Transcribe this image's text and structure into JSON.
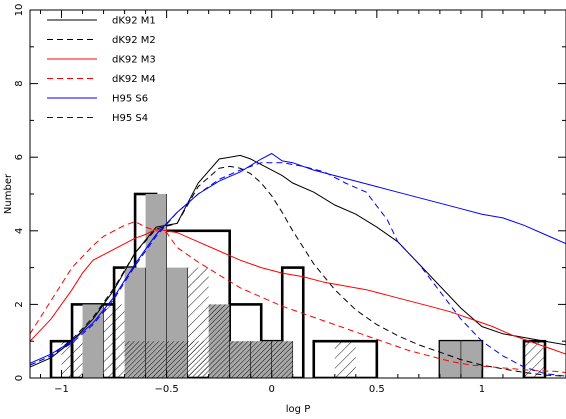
{
  "chart_data": {
    "type": "histogram-with-lines",
    "xlabel": "log P",
    "ylabel": "Number",
    "xlim": [
      -1.15,
      1.4
    ],
    "ylim": [
      0,
      10
    ],
    "x_ticks": [
      -1,
      -0.5,
      0,
      0.5,
      1
    ],
    "x_tick_labels": [
      "−1",
      "−0.5",
      "0",
      "0.5",
      "1"
    ],
    "y_ticks": [
      0,
      2,
      4,
      6,
      8,
      10
    ],
    "y_tick_labels": [
      "0",
      "2",
      "4",
      "6",
      "8",
      "10"
    ],
    "grid": false,
    "legend_position": "top-left",
    "bin_width": 0.1,
    "histograms": [
      {
        "style": "outline-thick-black",
        "bins": [
          {
            "x0": -1.05,
            "x1": -0.95,
            "value": 1
          },
          {
            "x0": -0.95,
            "x1": -0.75,
            "value": 2
          },
          {
            "x0": -0.75,
            "x1": -0.65,
            "value": 3
          },
          {
            "x0": -0.65,
            "x1": -0.55,
            "value": 5
          },
          {
            "x0": -0.55,
            "x1": -0.2,
            "value": 4
          },
          {
            "x0": -0.2,
            "x1": -0.05,
            "value": 2
          },
          {
            "x0": -0.05,
            "x1": 0.05,
            "value": 1
          },
          {
            "x0": 0.05,
            "x1": 0.15,
            "value": 3
          },
          {
            "x0": 0.2,
            "x1": 0.5,
            "value": 1
          },
          {
            "x0": 0.8,
            "x1": 1.0,
            "value": 1
          },
          {
            "x0": 1.2,
            "x1": 1.3,
            "value": 1
          }
        ]
      },
      {
        "style": "light-hatch",
        "bins": [
          {
            "x0": -1.0,
            "x1": -0.9,
            "value": 1
          },
          {
            "x0": -0.8,
            "x1": -0.7,
            "value": 2
          },
          {
            "x0": -0.4,
            "x1": -0.3,
            "value": 3
          },
          {
            "x0": 0.3,
            "x1": 0.4,
            "value": 1
          },
          {
            "x0": 1.2,
            "x1": 1.3,
            "value": 1
          }
        ]
      },
      {
        "style": "gray-fill",
        "bins": [
          {
            "x0": -0.9,
            "x1": -0.8,
            "value": 2
          },
          {
            "x0": -0.7,
            "x1": -0.6,
            "value": 3
          },
          {
            "x0": -0.6,
            "x1": -0.5,
            "value": 5
          },
          {
            "x0": -0.5,
            "x1": -0.4,
            "value": 3
          },
          {
            "x0": -0.3,
            "x1": -0.2,
            "value": 2
          },
          {
            "x0": -0.2,
            "x1": -0.1,
            "value": 1
          },
          {
            "x0": -0.1,
            "x1": 0.0,
            "value": 1
          },
          {
            "x0": 0.0,
            "x1": 0.1,
            "value": 1
          },
          {
            "x0": 0.8,
            "x1": 0.9,
            "value": 1
          },
          {
            "x0": 0.9,
            "x1": 1.0,
            "value": 1
          }
        ]
      },
      {
        "style": "dark-hatch",
        "bins": [
          {
            "x0": -0.7,
            "x1": -0.3,
            "value": 1
          },
          {
            "x0": -0.3,
            "x1": -0.2,
            "value": 2
          },
          {
            "x0": -0.2,
            "x1": 0.1,
            "value": 1
          }
        ]
      }
    ],
    "series": [
      {
        "name": "dK92  M1",
        "color": "#000000",
        "dash": "solid",
        "x": [
          -1.15,
          -1.05,
          -0.95,
          -0.85,
          -0.75,
          -0.65,
          -0.55,
          -0.45,
          -0.35,
          -0.25,
          -0.2,
          -0.15,
          -0.1,
          -0.05,
          0,
          0.05,
          0.1,
          0.2,
          0.3,
          0.4,
          0.5,
          0.6,
          0.7,
          0.8,
          0.9,
          1.0,
          1.1,
          1.2,
          1.3,
          1.4
        ],
        "y": [
          0.3,
          0.55,
          1.0,
          1.6,
          2.4,
          3.4,
          4.1,
          4.2,
          5.3,
          5.95,
          6.0,
          6.05,
          5.95,
          5.8,
          5.65,
          5.5,
          5.3,
          5.05,
          4.7,
          4.45,
          4.1,
          3.7,
          3.1,
          2.5,
          1.9,
          1.4,
          1.2,
          1.1,
          1.0,
          0.9
        ]
      },
      {
        "name": "dK92  M2",
        "color": "#000000",
        "dash": "dashed",
        "x": [
          -1.15,
          -1.05,
          -0.95,
          -0.85,
          -0.75,
          -0.65,
          -0.55,
          -0.45,
          -0.35,
          -0.25,
          -0.2,
          -0.15,
          -0.1,
          -0.05,
          0,
          0.05,
          0.1,
          0.2,
          0.3,
          0.4,
          0.5,
          0.6,
          0.7,
          0.8,
          0.9,
          1.0,
          1.1,
          1.2,
          1.3,
          1.4
        ],
        "y": [
          0.35,
          0.6,
          1.05,
          1.65,
          2.45,
          3.4,
          4.05,
          4.2,
          5.2,
          5.7,
          5.75,
          5.7,
          5.55,
          5.3,
          4.95,
          4.5,
          4.0,
          3.1,
          2.4,
          1.85,
          1.45,
          1.15,
          0.9,
          0.7,
          0.5,
          0.35,
          0.25,
          0.15,
          0.08,
          0.05
        ]
      },
      {
        "name": "dK92  M3",
        "color": "#ff0000",
        "dash": "solid",
        "x": [
          -1.15,
          -1.05,
          -0.95,
          -0.9,
          -0.85,
          -0.75,
          -0.65,
          -0.6,
          -0.55,
          -0.45,
          -0.35,
          -0.25,
          -0.15,
          -0.05,
          0.05,
          0.15,
          0.25,
          0.35,
          0.45,
          0.55,
          0.65,
          0.75,
          0.85,
          0.95,
          1.05,
          1.15,
          1.25,
          1.35,
          1.4
        ],
        "y": [
          1.0,
          1.6,
          2.4,
          2.85,
          3.2,
          3.5,
          3.8,
          3.9,
          4.05,
          3.95,
          3.7,
          3.45,
          3.2,
          3.0,
          2.85,
          2.75,
          2.6,
          2.5,
          2.4,
          2.25,
          2.1,
          1.95,
          1.8,
          1.6,
          1.4,
          1.15,
          0.95,
          0.75,
          0.65
        ]
      },
      {
        "name": "dK92  M4",
        "color": "#ff0000",
        "dash": "dashed",
        "x": [
          -1.15,
          -1.05,
          -0.95,
          -0.85,
          -0.8,
          -0.75,
          -0.7,
          -0.65,
          -0.6,
          -0.55,
          -0.5,
          -0.45,
          -0.35,
          -0.25,
          -0.15,
          -0.05,
          0.05,
          0.15,
          0.25,
          0.35,
          0.45,
          0.55,
          0.65,
          0.75,
          0.85,
          0.95,
          1.05,
          1.15,
          1.25,
          1.35,
          1.4
        ],
        "y": [
          1.2,
          2.1,
          3.0,
          3.6,
          3.85,
          4.0,
          4.15,
          4.25,
          4.1,
          4.0,
          3.95,
          3.55,
          3.15,
          2.8,
          2.45,
          2.2,
          1.95,
          1.75,
          1.55,
          1.35,
          1.15,
          0.95,
          0.75,
          0.6,
          0.45,
          0.35,
          0.3,
          0.25,
          0.2,
          0.18,
          0.15
        ]
      },
      {
        "name": "H95  S6",
        "color": "#0000ff",
        "dash": "solid",
        "x": [
          -1.15,
          -1.05,
          -0.95,
          -0.85,
          -0.75,
          -0.65,
          -0.55,
          -0.45,
          -0.35,
          -0.25,
          -0.15,
          -0.05,
          0,
          0.05,
          0.1,
          0.2,
          0.3,
          0.4,
          0.5,
          0.6,
          0.7,
          0.8,
          0.9,
          1.0,
          1.1,
          1.2,
          1.3,
          1.4
        ],
        "y": [
          0.4,
          0.65,
          1.0,
          1.5,
          2.2,
          3.1,
          3.9,
          4.5,
          5.0,
          5.35,
          5.6,
          5.95,
          6.1,
          5.9,
          5.85,
          5.65,
          5.5,
          5.35,
          5.2,
          5.05,
          4.9,
          4.75,
          4.6,
          4.45,
          4.35,
          4.15,
          3.9,
          3.65
        ]
      },
      {
        "name": "H95  S4",
        "color": "#0000ff",
        "dash": "dashed",
        "x": [
          -1.15,
          -1.05,
          -0.95,
          -0.85,
          -0.75,
          -0.65,
          -0.55,
          -0.45,
          -0.35,
          -0.25,
          -0.15,
          -0.05,
          0.05,
          0.15,
          0.25,
          0.35,
          0.45,
          0.55,
          0.6,
          0.7,
          0.8,
          0.9,
          1.0,
          1.1,
          1.2,
          1.3,
          1.4
        ],
        "y": [
          0.35,
          0.6,
          0.95,
          1.45,
          2.15,
          3.05,
          3.85,
          4.5,
          5.0,
          5.4,
          5.65,
          5.85,
          5.85,
          5.75,
          5.6,
          5.3,
          5.05,
          4.3,
          3.7,
          3.1,
          2.35,
          1.6,
          1.0,
          0.6,
          0.3,
          0.12,
          0.05
        ]
      }
    ]
  }
}
